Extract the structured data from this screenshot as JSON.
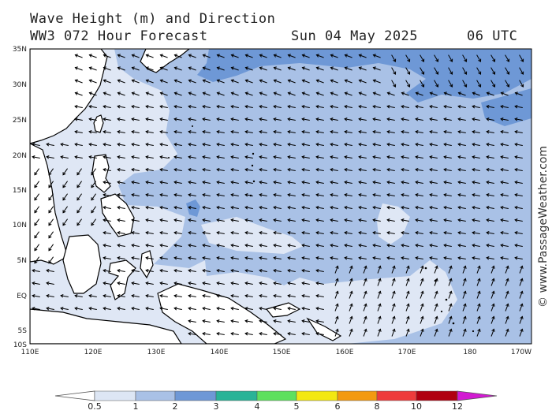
{
  "header": {
    "title": "Wave Height (m) and Direction",
    "model": "WW3 072 Hour Forecast",
    "date": "Sun 04 May 2025",
    "time": "06 UTC"
  },
  "watermark": "© www.PassageWeather.com",
  "map": {
    "lat_labels": [
      "35N",
      "30N",
      "25N",
      "20N",
      "15N",
      "10N",
      "5N",
      "EQ",
      "5S",
      "10S"
    ],
    "lon_labels": [
      "110E",
      "120E",
      "130E",
      "140E",
      "150E",
      "160E",
      "170E",
      "180",
      "170W"
    ],
    "colors": {
      "ocean_low": "#dfe7f5",
      "ocean_1_2": "#a9c1e6",
      "ocean_2_3": "#6e98d6",
      "land": "#ffffff",
      "coast": "#000000"
    }
  },
  "legend": {
    "units": "Wave height (m)",
    "labels": [
      "0.5",
      "1",
      "2",
      "3",
      "4",
      "5",
      "6",
      "8",
      "10",
      "12"
    ],
    "colors": [
      "#dde6f4",
      "#a9c1e6",
      "#6e98d6",
      "#29b397",
      "#5ee05e",
      "#f3e812",
      "#f39a10",
      "#ee3c3c",
      "#b00010",
      "#d21ad2"
    ]
  }
}
